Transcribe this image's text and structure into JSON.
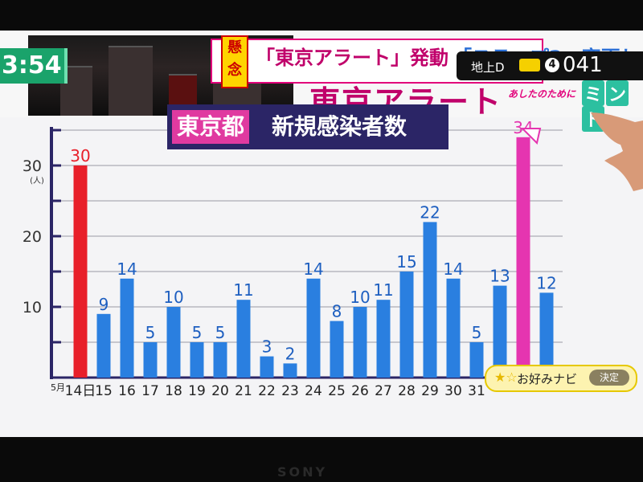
{
  "overlay": {
    "clock": "3:54",
    "kenen": "懸念",
    "alert_text": "「東京アラート」発動",
    "alert_text2": "「ステップ2」変更し",
    "big_title": "東京アラート",
    "channel_label": "地上D",
    "channel_badge": "4",
    "channel_number": "041",
    "show_subtitle": "あしたのために",
    "show_logo": [
      "ミ",
      "ン",
      "ト"
    ],
    "navi_label": "お好みナビ",
    "navi_button": "決定",
    "tv_brand": "SONY"
  },
  "chart_data": {
    "type": "bar",
    "title_highlight": "東京都",
    "title": "新規感染者数",
    "ylabel": "(人)",
    "ylim": [
      0,
      35
    ],
    "yticks": [
      10,
      20,
      30
    ],
    "month_label": "5月",
    "categories": [
      "14日",
      "15",
      "16",
      "17",
      "18",
      "19",
      "20",
      "21",
      "22",
      "23",
      "24",
      "25",
      "26",
      "27",
      "28",
      "29",
      "30",
      "31",
      "",
      "",
      ""
    ],
    "values": [
      30,
      9,
      14,
      5,
      10,
      5,
      5,
      11,
      3,
      2,
      14,
      8,
      10,
      11,
      15,
      22,
      14,
      5,
      13,
      34,
      12
    ],
    "bar_colors": [
      "#e8202a",
      "#2a7fe0",
      "#2a7fe0",
      "#2a7fe0",
      "#2a7fe0",
      "#2a7fe0",
      "#2a7fe0",
      "#2a7fe0",
      "#2a7fe0",
      "#2a7fe0",
      "#2a7fe0",
      "#2a7fe0",
      "#2a7fe0",
      "#2a7fe0",
      "#2a7fe0",
      "#2a7fe0",
      "#2a7fe0",
      "#2a7fe0",
      "#2a7fe0",
      "#e535b0",
      "#2a7fe0"
    ],
    "label_colors": [
      "#e8202a",
      "#1e5fc0",
      "#1e5fc0",
      "#1e5fc0",
      "#1e5fc0",
      "#1e5fc0",
      "#1e5fc0",
      "#1e5fc0",
      "#1e5fc0",
      "#1e5fc0",
      "#1e5fc0",
      "#1e5fc0",
      "#1e5fc0",
      "#1e5fc0",
      "#1e5fc0",
      "#1e5fc0",
      "#1e5fc0",
      "#1e5fc0",
      "#1e5fc0",
      "#e535b0",
      "#1e5fc0"
    ],
    "grid": true
  }
}
